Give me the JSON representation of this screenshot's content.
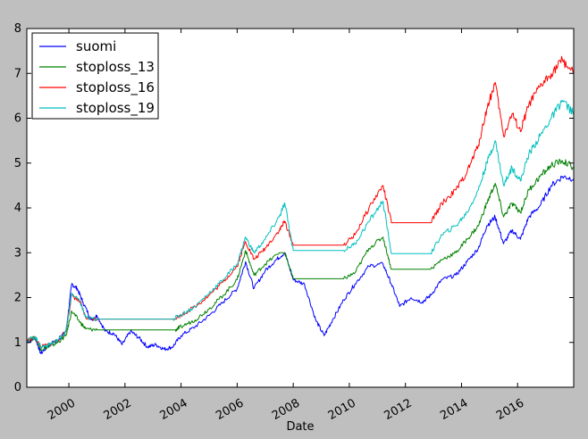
{
  "chart_data": {
    "type": "line",
    "xlabel": "Date",
    "ylabel": "",
    "title": "",
    "xlim": [
      1998.5,
      2018.0
    ],
    "ylim": [
      0,
      8
    ],
    "x_ticks": [
      "2000",
      "2002",
      "2004",
      "2006",
      "2008",
      "2010",
      "2012",
      "2014",
      "2016"
    ],
    "y_ticks": [
      "0",
      "1",
      "2",
      "3",
      "4",
      "5",
      "6",
      "7",
      "8"
    ],
    "legend_placement": "top-left",
    "grid": false,
    "series": [
      {
        "name": "suomi",
        "color": "#0000ff",
        "points": [
          [
            1998.5,
            1.0
          ],
          [
            1998.8,
            1.1
          ],
          [
            1999.0,
            0.75
          ],
          [
            1999.3,
            0.95
          ],
          [
            1999.6,
            1.05
          ],
          [
            1999.9,
            1.25
          ],
          [
            2000.1,
            2.3
          ],
          [
            2000.3,
            2.2
          ],
          [
            2000.5,
            1.9
          ],
          [
            2000.8,
            1.5
          ],
          [
            2001.0,
            1.6
          ],
          [
            2001.3,
            1.25
          ],
          [
            2001.6,
            1.2
          ],
          [
            2001.9,
            0.95
          ],
          [
            2002.2,
            1.25
          ],
          [
            2002.5,
            1.1
          ],
          [
            2002.8,
            0.9
          ],
          [
            2003.1,
            0.95
          ],
          [
            2003.4,
            0.85
          ],
          [
            2003.7,
            0.9
          ],
          [
            2004.0,
            1.15
          ],
          [
            2004.5,
            1.35
          ],
          [
            2005.0,
            1.6
          ],
          [
            2005.5,
            1.9
          ],
          [
            2006.0,
            2.2
          ],
          [
            2006.3,
            2.8
          ],
          [
            2006.6,
            2.2
          ],
          [
            2007.0,
            2.6
          ],
          [
            2007.4,
            2.85
          ],
          [
            2007.7,
            3.0
          ],
          [
            2008.0,
            2.4
          ],
          [
            2008.4,
            2.3
          ],
          [
            2008.8,
            1.5
          ],
          [
            2009.1,
            1.15
          ],
          [
            2009.4,
            1.5
          ],
          [
            2009.8,
            1.95
          ],
          [
            2010.2,
            2.3
          ],
          [
            2010.7,
            2.7
          ],
          [
            2011.2,
            2.75
          ],
          [
            2011.5,
            2.3
          ],
          [
            2011.8,
            1.8
          ],
          [
            2012.2,
            2.0
          ],
          [
            2012.6,
            1.9
          ],
          [
            2012.9,
            2.05
          ],
          [
            2013.3,
            2.4
          ],
          [
            2013.8,
            2.5
          ],
          [
            2014.2,
            2.8
          ],
          [
            2014.6,
            3.1
          ],
          [
            2014.9,
            3.6
          ],
          [
            2015.2,
            3.8
          ],
          [
            2015.5,
            3.2
          ],
          [
            2015.8,
            3.5
          ],
          [
            2016.1,
            3.3
          ],
          [
            2016.4,
            3.8
          ],
          [
            2016.8,
            4.05
          ],
          [
            2017.2,
            4.5
          ],
          [
            2017.6,
            4.7
          ],
          [
            2018.0,
            4.65
          ]
        ]
      },
      {
        "name": "stoploss_13",
        "color": "#008000",
        "points": [
          [
            1998.5,
            1.05
          ],
          [
            1998.8,
            1.1
          ],
          [
            1999.0,
            0.85
          ],
          [
            1999.3,
            0.9
          ],
          [
            1999.6,
            1.0
          ],
          [
            1999.9,
            1.15
          ],
          [
            2000.1,
            1.7
          ],
          [
            2000.4,
            1.45
          ],
          [
            2000.6,
            1.3
          ],
          [
            2001.0,
            1.28
          ],
          [
            2002.0,
            1.28
          ],
          [
            2003.0,
            1.28
          ],
          [
            2003.8,
            1.28
          ],
          [
            2004.0,
            1.35
          ],
          [
            2004.5,
            1.5
          ],
          [
            2005.0,
            1.75
          ],
          [
            2005.5,
            2.05
          ],
          [
            2006.0,
            2.4
          ],
          [
            2006.3,
            3.05
          ],
          [
            2006.6,
            2.5
          ],
          [
            2007.0,
            2.75
          ],
          [
            2007.5,
            3.0
          ],
          [
            2007.7,
            3.0
          ],
          [
            2008.0,
            2.42
          ],
          [
            2009.0,
            2.42
          ],
          [
            2009.8,
            2.42
          ],
          [
            2010.2,
            2.55
          ],
          [
            2010.7,
            3.1
          ],
          [
            2011.2,
            3.35
          ],
          [
            2011.5,
            2.63
          ],
          [
            2012.0,
            2.63
          ],
          [
            2012.9,
            2.63
          ],
          [
            2013.3,
            2.85
          ],
          [
            2013.8,
            3.0
          ],
          [
            2014.2,
            3.3
          ],
          [
            2014.6,
            3.6
          ],
          [
            2014.9,
            4.1
          ],
          [
            2015.2,
            4.55
          ],
          [
            2015.5,
            3.8
          ],
          [
            2015.8,
            4.1
          ],
          [
            2016.1,
            3.9
          ],
          [
            2016.4,
            4.4
          ],
          [
            2016.8,
            4.7
          ],
          [
            2017.2,
            4.95
          ],
          [
            2017.6,
            5.05
          ],
          [
            2018.0,
            4.9
          ]
        ]
      },
      {
        "name": "stoploss_16",
        "color": "#ff0000",
        "points": [
          [
            1998.5,
            1.05
          ],
          [
            1998.8,
            1.1
          ],
          [
            1999.0,
            0.9
          ],
          [
            1999.3,
            0.95
          ],
          [
            1999.6,
            1.05
          ],
          [
            1999.9,
            1.25
          ],
          [
            2000.1,
            2.05
          ],
          [
            2000.4,
            1.9
          ],
          [
            2000.6,
            1.55
          ],
          [
            2001.0,
            1.52
          ],
          [
            2002.0,
            1.52
          ],
          [
            2003.0,
            1.52
          ],
          [
            2003.7,
            1.52
          ],
          [
            2004.0,
            1.6
          ],
          [
            2004.5,
            1.8
          ],
          [
            2005.0,
            2.05
          ],
          [
            2005.5,
            2.35
          ],
          [
            2006.0,
            2.7
          ],
          [
            2006.3,
            3.25
          ],
          [
            2006.6,
            2.85
          ],
          [
            2007.0,
            3.1
          ],
          [
            2007.5,
            3.5
          ],
          [
            2007.7,
            3.7
          ],
          [
            2008.0,
            3.17
          ],
          [
            2009.0,
            3.17
          ],
          [
            2009.8,
            3.17
          ],
          [
            2010.2,
            3.4
          ],
          [
            2010.7,
            4.0
          ],
          [
            2011.2,
            4.5
          ],
          [
            2011.5,
            3.67
          ],
          [
            2012.0,
            3.67
          ],
          [
            2012.9,
            3.67
          ],
          [
            2013.3,
            4.1
          ],
          [
            2013.8,
            4.4
          ],
          [
            2014.2,
            4.8
          ],
          [
            2014.6,
            5.4
          ],
          [
            2014.9,
            6.2
          ],
          [
            2015.2,
            6.8
          ],
          [
            2015.5,
            5.6
          ],
          [
            2015.8,
            6.1
          ],
          [
            2016.1,
            5.7
          ],
          [
            2016.4,
            6.3
          ],
          [
            2016.8,
            6.7
          ],
          [
            2017.2,
            7.0
          ],
          [
            2017.6,
            7.3
          ],
          [
            2018.0,
            7.0
          ]
        ]
      },
      {
        "name": "stoploss_19",
        "color": "#00bfbf",
        "points": [
          [
            1998.5,
            1.05
          ],
          [
            1998.8,
            1.12
          ],
          [
            1999.0,
            0.9
          ],
          [
            1999.3,
            0.95
          ],
          [
            1999.6,
            1.05
          ],
          [
            1999.9,
            1.25
          ],
          [
            2000.1,
            2.1
          ],
          [
            2000.4,
            1.9
          ],
          [
            2000.6,
            1.55
          ],
          [
            2001.0,
            1.52
          ],
          [
            2002.0,
            1.52
          ],
          [
            2003.0,
            1.52
          ],
          [
            2003.7,
            1.52
          ],
          [
            2004.0,
            1.62
          ],
          [
            2004.5,
            1.8
          ],
          [
            2005.0,
            2.1
          ],
          [
            2005.5,
            2.4
          ],
          [
            2006.0,
            2.75
          ],
          [
            2006.3,
            3.35
          ],
          [
            2006.6,
            3.0
          ],
          [
            2007.0,
            3.3
          ],
          [
            2007.5,
            3.8
          ],
          [
            2007.7,
            4.1
          ],
          [
            2008.0,
            3.05
          ],
          [
            2009.0,
            3.05
          ],
          [
            2009.8,
            3.05
          ],
          [
            2010.2,
            3.2
          ],
          [
            2010.7,
            3.7
          ],
          [
            2011.2,
            4.15
          ],
          [
            2011.5,
            2.98
          ],
          [
            2012.0,
            2.98
          ],
          [
            2012.9,
            2.98
          ],
          [
            2013.3,
            3.4
          ],
          [
            2013.8,
            3.6
          ],
          [
            2014.2,
            3.9
          ],
          [
            2014.6,
            4.4
          ],
          [
            2014.9,
            5.0
          ],
          [
            2015.2,
            5.5
          ],
          [
            2015.5,
            4.5
          ],
          [
            2015.8,
            4.9
          ],
          [
            2016.1,
            4.6
          ],
          [
            2016.4,
            5.2
          ],
          [
            2016.8,
            5.6
          ],
          [
            2017.2,
            6.0
          ],
          [
            2017.6,
            6.4
          ],
          [
            2018.0,
            6.1
          ]
        ]
      }
    ]
  }
}
